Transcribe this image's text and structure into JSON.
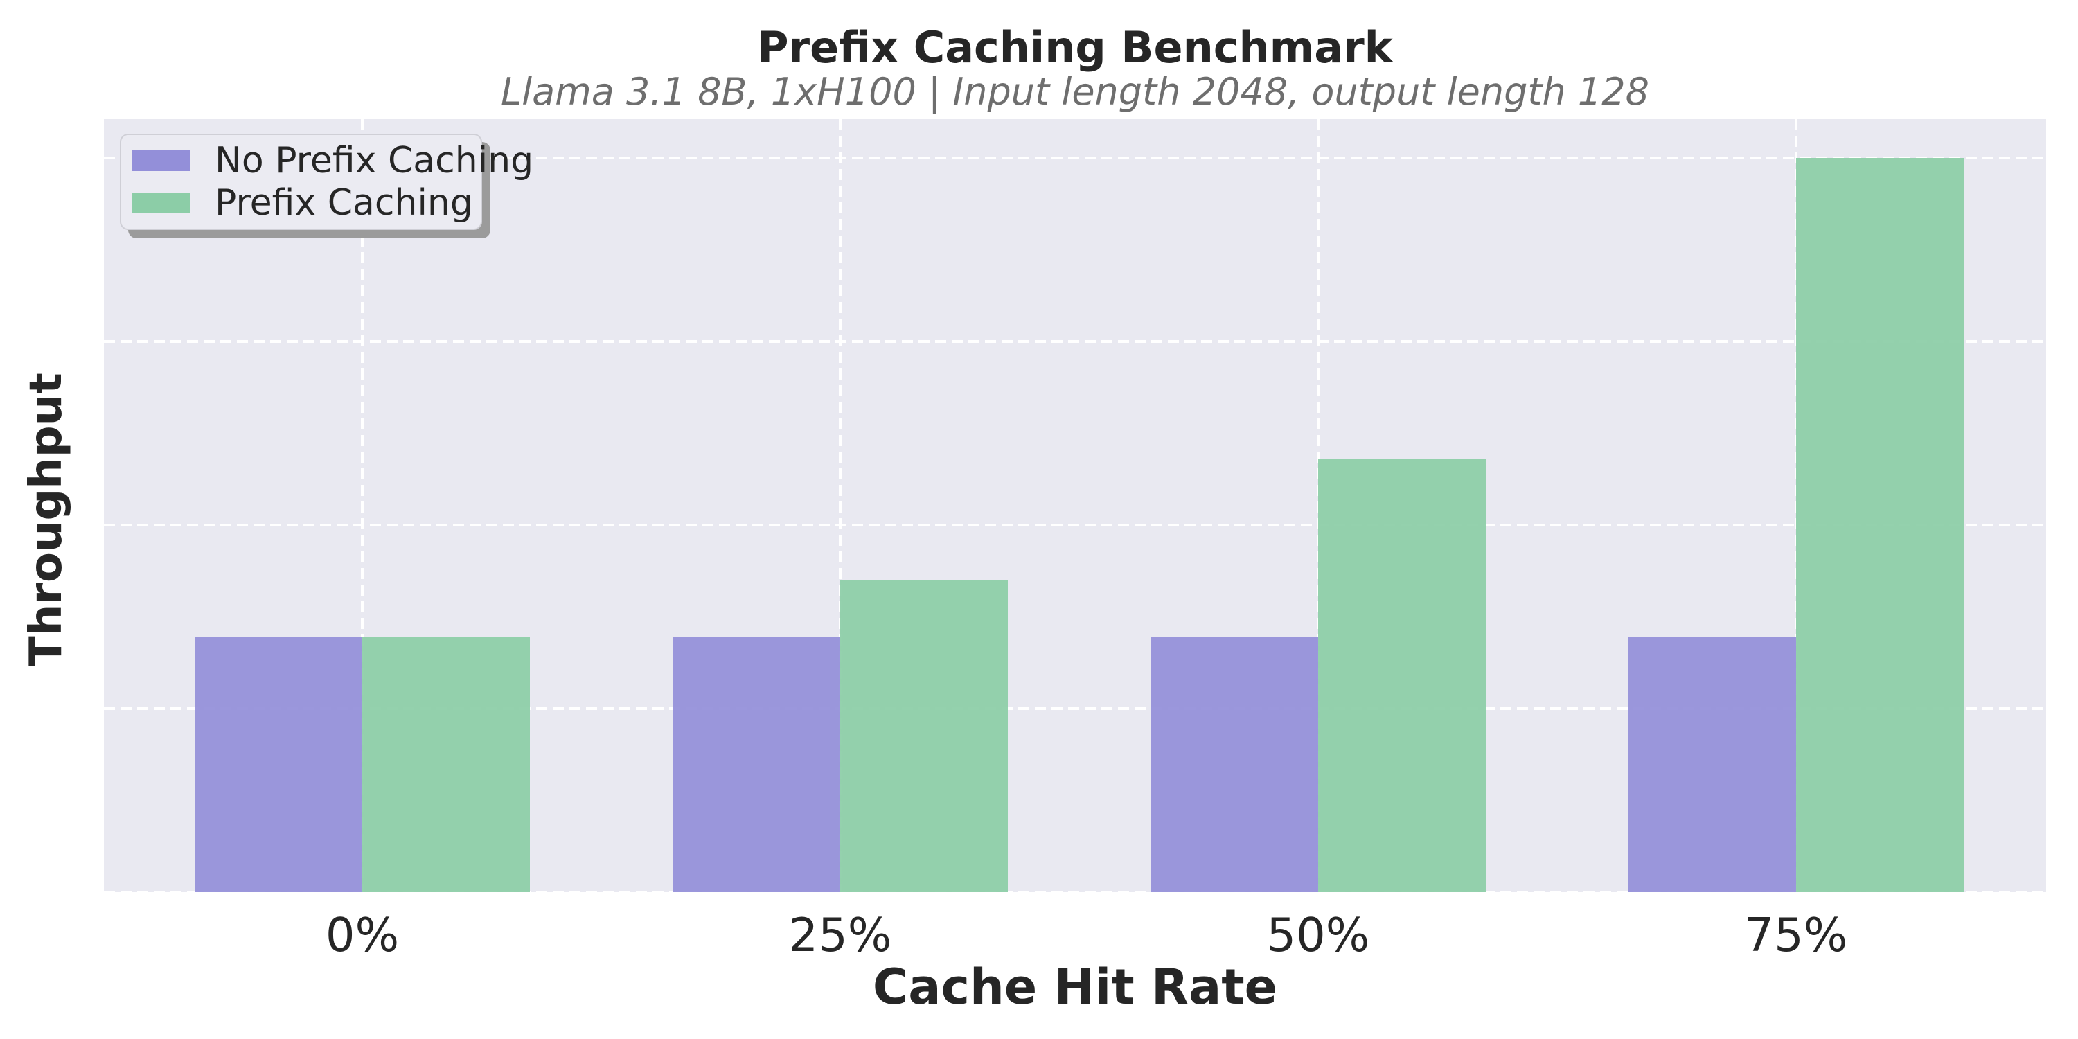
{
  "chart_data": {
    "type": "bar",
    "title": "Prefix Caching Benchmark",
    "subtitle": "Llama 3.1 8B, 1xH100 | Input length 2048, output length 128",
    "xlabel": "Cache Hit Rate",
    "ylabel": "Throughput",
    "categories": [
      "0%",
      "25%",
      "50%",
      "75%"
    ],
    "series": [
      {
        "name": "No Prefix Caching",
        "color": "#938fd9",
        "values": [
          1.39,
          1.39,
          1.39,
          1.39
        ]
      },
      {
        "name": "Prefix Caching",
        "color": "#8ccda7",
        "values": [
          1.39,
          1.7,
          2.36,
          4.0
        ]
      }
    ],
    "relative_speedup_of_prefix_caching": [
      1.0,
      1.22,
      1.7,
      2.88
    ],
    "ylim": [
      0,
      4.21
    ],
    "yticks": [
      0,
      1,
      2,
      3,
      4
    ],
    "ytick_labels_visible": false,
    "grid": "dashed white horizontal and vertical gridlines on",
    "legend_position": "upper left",
    "background": "#e9e9f1",
    "colors": {
      "plot_background": "#e9e9f1",
      "grid": "#ffffff",
      "title_text": "#262626",
      "subtitle_text": "#6e6e6e",
      "axis_text": "#262626"
    }
  }
}
